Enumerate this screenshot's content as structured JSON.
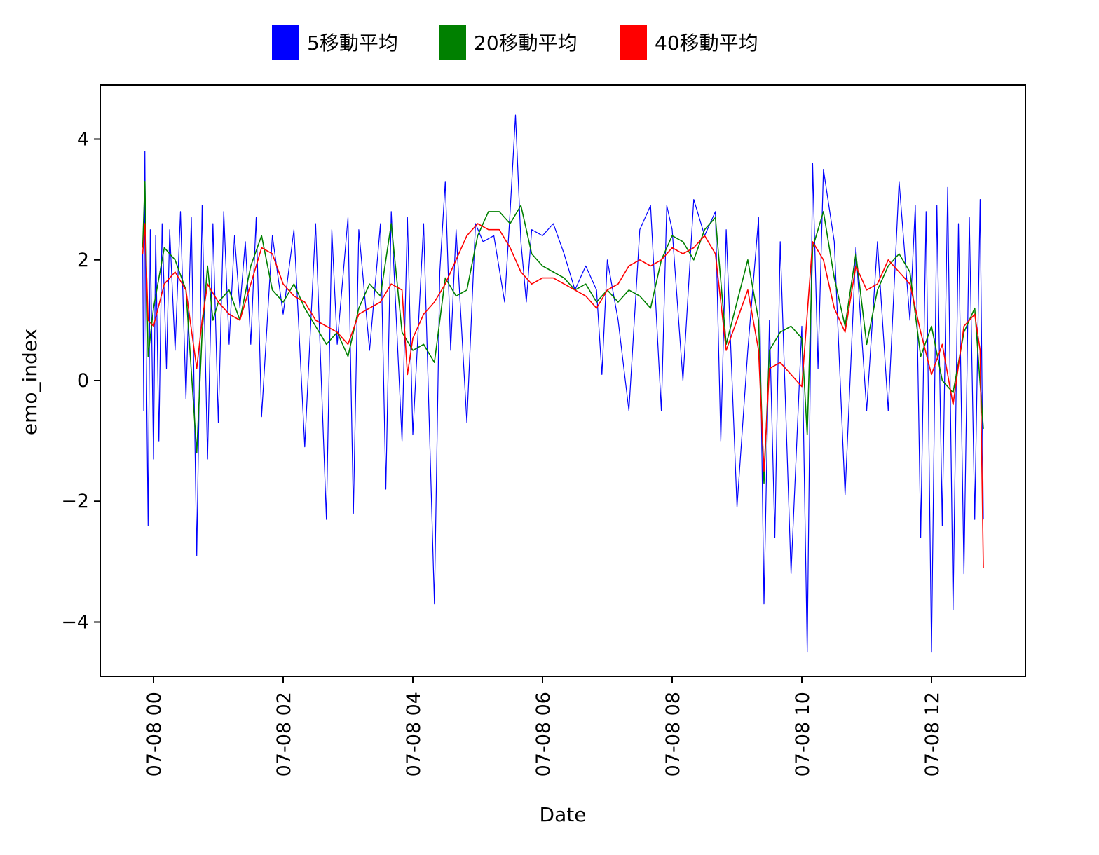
{
  "chart_data": {
    "type": "line",
    "xlabel": "Date",
    "ylabel": "emo_index",
    "x_ticks": [
      "07-08 00",
      "07-08 02",
      "07-08 04",
      "07-08 06",
      "07-08 08",
      "07-08 10",
      "07-08 12"
    ],
    "y_ticks": [
      "4",
      "2",
      "0",
      "−2",
      "−4"
    ],
    "ylim": [
      -4.9,
      4.9
    ],
    "xlim": [
      "07-07 23:10",
      "07-08 13:30"
    ],
    "legend_position": "top-center",
    "series": [
      {
        "name": "5移動平均",
        "color": "#0000ff",
        "x": [
          "07-07 23:50",
          "07-07 23:51",
          "07-07 23:52",
          "07-07 23:53",
          "07-07 23:55",
          "07-07 23:57",
          "07-08 00:00",
          "07-08 00:02",
          "07-08 00:05",
          "07-08 00:08",
          "07-08 00:12",
          "07-08 00:15",
          "07-08 00:20",
          "07-08 00:25",
          "07-08 00:30",
          "07-08 00:35",
          "07-08 00:40",
          "07-08 00:45",
          "07-08 00:50",
          "07-08 00:55",
          "07-08 01:00",
          "07-08 01:05",
          "07-08 01:10",
          "07-08 01:15",
          "07-08 01:20",
          "07-08 01:25",
          "07-08 01:30",
          "07-08 01:35",
          "07-08 01:40",
          "07-08 01:50",
          "07-08 02:00",
          "07-08 02:10",
          "07-08 02:20",
          "07-08 02:30",
          "07-08 02:40",
          "07-08 02:45",
          "07-08 02:50",
          "07-08 03:00",
          "07-08 03:05",
          "07-08 03:10",
          "07-08 03:20",
          "07-08 03:30",
          "07-08 03:35",
          "07-08 03:40",
          "07-08 03:50",
          "07-08 03:55",
          "07-08 04:00",
          "07-08 04:10",
          "07-08 04:20",
          "07-08 04:25",
          "07-08 04:30",
          "07-08 04:35",
          "07-08 04:40",
          "07-08 04:50",
          "07-08 04:58",
          "07-08 05:05",
          "07-08 05:15",
          "07-08 05:25",
          "07-08 05:30",
          "07-08 05:35",
          "07-08 05:40",
          "07-08 05:45",
          "07-08 05:50",
          "07-08 06:00",
          "07-08 06:10",
          "07-08 06:20",
          "07-08 06:30",
          "07-08 06:40",
          "07-08 06:50",
          "07-08 06:55",
          "07-08 07:00",
          "07-08 07:10",
          "07-08 07:20",
          "07-08 07:30",
          "07-08 07:40",
          "07-08 07:50",
          "07-08 07:55",
          "07-08 08:00",
          "07-08 08:10",
          "07-08 08:20",
          "07-08 08:30",
          "07-08 08:40",
          "07-08 08:45",
          "07-08 08:50",
          "07-08 09:00",
          "07-08 09:10",
          "07-08 09:20",
          "07-08 09:25",
          "07-08 09:30",
          "07-08 09:35",
          "07-08 09:40",
          "07-08 09:50",
          "07-08 10:00",
          "07-08 10:05",
          "07-08 10:10",
          "07-08 10:15",
          "07-08 10:20",
          "07-08 10:30",
          "07-08 10:40",
          "07-08 10:50",
          "07-08 11:00",
          "07-08 11:10",
          "07-08 11:20",
          "07-08 11:30",
          "07-08 11:40",
          "07-08 11:45",
          "07-08 11:50",
          "07-08 11:55",
          "07-08 12:00",
          "07-08 12:05",
          "07-08 12:10",
          "07-08 12:15",
          "07-08 12:20",
          "07-08 12:25",
          "07-08 12:30",
          "07-08 12:35",
          "07-08 12:40",
          "07-08 12:45",
          "07-08 12:48"
        ],
        "y": [
          2.1,
          -0.5,
          3.8,
          1.0,
          -2.4,
          2.5,
          -1.3,
          2.4,
          -1.0,
          2.6,
          0.2,
          2.5,
          0.5,
          2.8,
          -0.3,
          2.7,
          -2.9,
          2.9,
          -1.3,
          2.6,
          -0.7,
          2.8,
          0.6,
          2.4,
          1.2,
          2.3,
          0.6,
          2.7,
          -0.6,
          2.4,
          1.1,
          2.5,
          -1.1,
          2.6,
          -2.3,
          2.5,
          0.6,
          2.7,
          -2.2,
          2.5,
          0.5,
          2.6,
          -1.8,
          2.8,
          -1.0,
          2.7,
          -0.9,
          2.6,
          -3.7,
          1.8,
          3.3,
          0.5,
          2.5,
          -0.7,
          2.6,
          2.3,
          2.4,
          1.3,
          2.8,
          4.4,
          2.3,
          1.3,
          2.5,
          2.4,
          2.6,
          2.1,
          1.5,
          1.9,
          1.5,
          0.1,
          2.0,
          1.0,
          -0.5,
          2.5,
          2.9,
          -0.5,
          2.9,
          2.5,
          0.0,
          3.0,
          2.4,
          2.8,
          -1.0,
          2.5,
          -2.1,
          0.5,
          2.7,
          -3.7,
          1.0,
          -2.6,
          2.3,
          -3.2,
          0.9,
          -4.5,
          3.6,
          0.2,
          3.5,
          2.3,
          -1.9,
          2.2,
          -0.5,
          2.3,
          -0.5,
          3.3,
          1.0,
          2.9,
          -2.6,
          2.8,
          -4.5,
          2.9,
          -2.4,
          3.2,
          -3.8,
          2.6,
          -3.2,
          2.7,
          -2.3,
          3.0,
          -2.3
        ]
      },
      {
        "name": "20移動平均",
        "color": "#008000",
        "x": [
          "07-07 23:50",
          "07-07 23:52",
          "07-07 23:55",
          "07-08 00:00",
          "07-08 00:10",
          "07-08 00:20",
          "07-08 00:30",
          "07-08 00:40",
          "07-08 00:45",
          "07-08 00:50",
          "07-08 00:55",
          "07-08 01:00",
          "07-08 01:10",
          "07-08 01:20",
          "07-08 01:30",
          "07-08 01:40",
          "07-08 01:50",
          "07-08 02:00",
          "07-08 02:10",
          "07-08 02:20",
          "07-08 02:30",
          "07-08 02:40",
          "07-08 02:50",
          "07-08 03:00",
          "07-08 03:10",
          "07-08 03:20",
          "07-08 03:30",
          "07-08 03:40",
          "07-08 03:50",
          "07-08 04:00",
          "07-08 04:10",
          "07-08 04:20",
          "07-08 04:30",
          "07-08 04:40",
          "07-08 04:50",
          "07-08 05:00",
          "07-08 05:10",
          "07-08 05:20",
          "07-08 05:30",
          "07-08 05:40",
          "07-08 05:50",
          "07-08 06:00",
          "07-08 06:10",
          "07-08 06:20",
          "07-08 06:30",
          "07-08 06:40",
          "07-08 06:50",
          "07-08 07:00",
          "07-08 07:10",
          "07-08 07:20",
          "07-08 07:30",
          "07-08 07:40",
          "07-08 07:50",
          "07-08 08:00",
          "07-08 08:10",
          "07-08 08:20",
          "07-08 08:30",
          "07-08 08:40",
          "07-08 08:50",
          "07-08 09:00",
          "07-08 09:10",
          "07-08 09:20",
          "07-08 09:25",
          "07-08 09:30",
          "07-08 09:40",
          "07-08 09:50",
          "07-08 10:00",
          "07-08 10:05",
          "07-08 10:10",
          "07-08 10:20",
          "07-08 10:30",
          "07-08 10:40",
          "07-08 10:50",
          "07-08 11:00",
          "07-08 11:10",
          "07-08 11:20",
          "07-08 11:30",
          "07-08 11:40",
          "07-08 11:50",
          "07-08 12:00",
          "07-08 12:10",
          "07-08 12:20",
          "07-08 12:30",
          "07-08 12:40",
          "07-08 12:48"
        ],
        "y": [
          2.2,
          3.3,
          0.4,
          1.2,
          2.2,
          2.0,
          1.5,
          -1.2,
          0.8,
          1.9,
          1.0,
          1.3,
          1.5,
          1.0,
          1.9,
          2.4,
          1.5,
          1.3,
          1.6,
          1.2,
          0.9,
          0.6,
          0.8,
          0.4,
          1.2,
          1.6,
          1.4,
          2.6,
          0.8,
          0.5,
          0.6,
          0.3,
          1.7,
          1.4,
          1.5,
          2.4,
          2.8,
          2.8,
          2.6,
          2.9,
          2.1,
          1.9,
          1.8,
          1.7,
          1.5,
          1.6,
          1.3,
          1.5,
          1.3,
          1.5,
          1.4,
          1.2,
          2.0,
          2.4,
          2.3,
          2.0,
          2.5,
          2.7,
          0.6,
          1.3,
          2.0,
          1.0,
          -1.7,
          0.5,
          0.8,
          0.9,
          0.7,
          -0.9,
          2.2,
          2.8,
          1.7,
          0.9,
          2.1,
          0.6,
          1.5,
          1.9,
          2.1,
          1.8,
          0.4,
          0.9,
          0.0,
          -0.2,
          0.8,
          1.2,
          -0.8
        ]
      },
      {
        "name": "40移動平均",
        "color": "#ff0000",
        "x": [
          "07-07 23:50",
          "07-07 23:52",
          "07-07 23:55",
          "07-08 00:00",
          "07-08 00:10",
          "07-08 00:20",
          "07-08 00:30",
          "07-08 00:40",
          "07-08 00:45",
          "07-08 00:50",
          "07-08 01:00",
          "07-08 01:10",
          "07-08 01:20",
          "07-08 01:30",
          "07-08 01:40",
          "07-08 01:50",
          "07-08 02:00",
          "07-08 02:10",
          "07-08 02:20",
          "07-08 02:30",
          "07-08 02:40",
          "07-08 02:50",
          "07-08 03:00",
          "07-08 03:10",
          "07-08 03:20",
          "07-08 03:30",
          "07-08 03:40",
          "07-08 03:50",
          "07-08 03:55",
          "07-08 04:00",
          "07-08 04:10",
          "07-08 04:20",
          "07-08 04:30",
          "07-08 04:40",
          "07-08 04:50",
          "07-08 05:00",
          "07-08 05:10",
          "07-08 05:20",
          "07-08 05:30",
          "07-08 05:40",
          "07-08 05:50",
          "07-08 06:00",
          "07-08 06:10",
          "07-08 06:20",
          "07-08 06:30",
          "07-08 06:40",
          "07-08 06:50",
          "07-08 07:00",
          "07-08 07:10",
          "07-08 07:20",
          "07-08 07:30",
          "07-08 07:40",
          "07-08 07:50",
          "07-08 08:00",
          "07-08 08:10",
          "07-08 08:20",
          "07-08 08:30",
          "07-08 08:40",
          "07-08 08:50",
          "07-08 09:00",
          "07-08 09:10",
          "07-08 09:20",
          "07-08 09:25",
          "07-08 09:30",
          "07-08 09:40",
          "07-08 09:50",
          "07-08 10:00",
          "07-08 10:10",
          "07-08 10:20",
          "07-08 10:30",
          "07-08 10:40",
          "07-08 10:50",
          "07-08 11:00",
          "07-08 11:10",
          "07-08 11:20",
          "07-08 11:30",
          "07-08 11:40",
          "07-08 11:50",
          "07-08 12:00",
          "07-08 12:10",
          "07-08 12:20",
          "07-08 12:30",
          "07-08 12:40",
          "07-08 12:45",
          "07-08 12:48"
        ],
        "y": [
          2.1,
          2.6,
          1.0,
          0.9,
          1.6,
          1.8,
          1.5,
          0.2,
          1.0,
          1.6,
          1.3,
          1.1,
          1.0,
          1.6,
          2.2,
          2.1,
          1.6,
          1.4,
          1.3,
          1.0,
          0.9,
          0.8,
          0.6,
          1.1,
          1.2,
          1.3,
          1.6,
          1.5,
          0.1,
          0.7,
          1.1,
          1.3,
          1.6,
          2.0,
          2.4,
          2.6,
          2.5,
          2.5,
          2.2,
          1.8,
          1.6,
          1.7,
          1.7,
          1.6,
          1.5,
          1.4,
          1.2,
          1.5,
          1.6,
          1.9,
          2.0,
          1.9,
          2.0,
          2.2,
          2.1,
          2.2,
          2.4,
          2.1,
          0.5,
          1.0,
          1.5,
          0.5,
          -1.5,
          0.2,
          0.3,
          0.1,
          -0.1,
          2.3,
          2.0,
          1.2,
          0.8,
          1.9,
          1.5,
          1.6,
          2.0,
          1.8,
          1.6,
          0.8,
          0.1,
          0.6,
          -0.4,
          0.9,
          1.1,
          0.5,
          -3.1
        ]
      }
    ]
  }
}
